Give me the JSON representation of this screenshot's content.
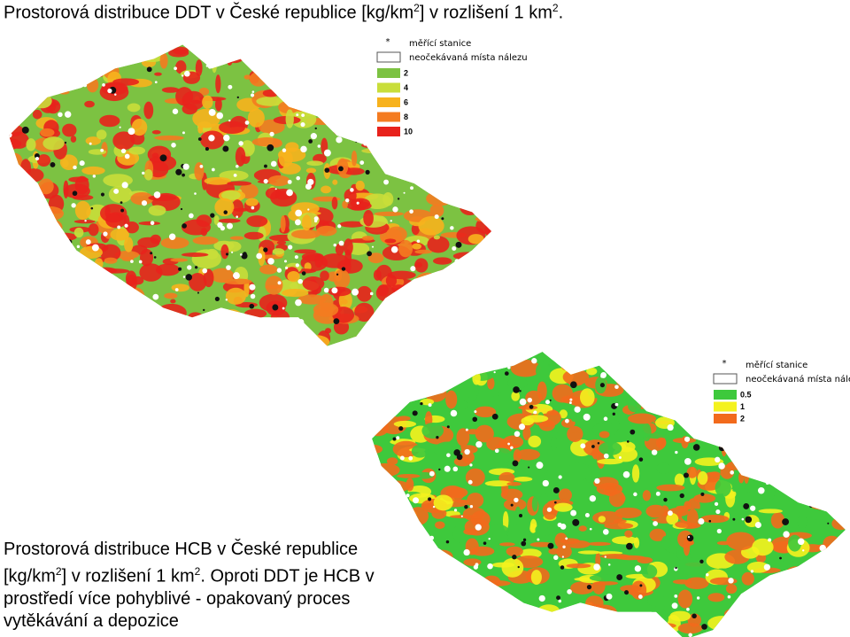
{
  "title": [
    "Prostorová distribuce DDT v České republice [kg/km",
    "2",
    "] v rozlišení 1 km",
    "2",
    "."
  ],
  "map_ddt": {
    "legend": {
      "station": "měřící stanice",
      "unexpected": "neočekávaná místa nálezu",
      "classes": [
        {
          "label": "2",
          "color": "#7cc242"
        },
        {
          "label": "4",
          "color": "#c9de3a"
        },
        {
          "label": "6",
          "color": "#f7b21d"
        },
        {
          "label": "8",
          "color": "#f47b20"
        },
        {
          "label": "10",
          "color": "#e8221c"
        }
      ]
    }
  },
  "map_hcb": {
    "legend": {
      "station": "měřící stanice",
      "unexpected": "neočekávaná místa nálezu",
      "classes": [
        {
          "label": "0.5",
          "color": "#3ec93c"
        },
        {
          "label": "1",
          "color": "#f4f21e"
        },
        {
          "label": "2",
          "color": "#f26a1c"
        }
      ]
    }
  },
  "caption": [
    "Prostorová distribuce HCB v České republice [kg/km",
    "2",
    "] v rozlišení 1 km",
    "2",
    ". Oproti DDT je HCB v prostředí více pohyblivé - opakovaný proces vytěkávání a depozice"
  ]
}
